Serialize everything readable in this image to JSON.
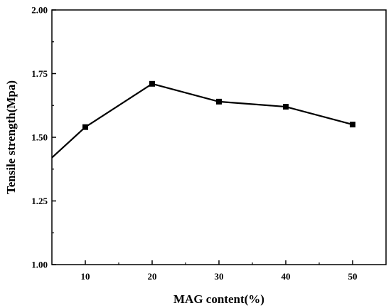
{
  "chart_data": {
    "type": "line",
    "x": [
      5,
      10,
      20,
      30,
      40,
      50
    ],
    "series": [
      {
        "values": [
          1.42,
          1.54,
          1.71,
          1.64,
          1.62,
          1.55
        ]
      }
    ],
    "xlabel": "MAG content(%)",
    "ylabel": "Tensile strength(Mpa)",
    "xlim": [
      5,
      55
    ],
    "ylim": [
      1.0,
      2.0
    ],
    "x_ticks": [
      10,
      20,
      30,
      40,
      50
    ],
    "x_tick_labels": [
      "10",
      "20",
      "30",
      "40",
      "50"
    ],
    "y_ticks": [
      1.0,
      1.25,
      1.5,
      1.75,
      2.0
    ],
    "y_tick_labels": [
      "1.00",
      "1.25",
      "1.50",
      "1.75",
      "2.00"
    ],
    "marker": "square",
    "marked_points": [
      1,
      2,
      3,
      4,
      5
    ],
    "grid": false,
    "line_color": "#000000"
  }
}
